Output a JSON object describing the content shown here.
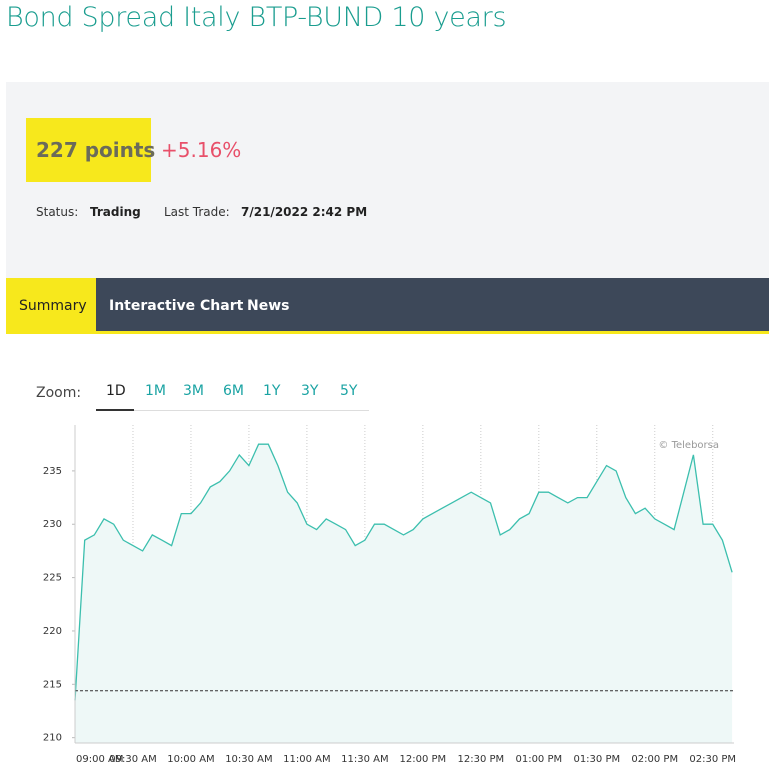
{
  "header": {
    "title": "Bond Spread Italy BTP-BUND 10 years"
  },
  "quote": {
    "price": "227 points",
    "change": "+5.16%",
    "status_label": "Status:",
    "status": "Trading",
    "last_trade_label": "Last Trade:",
    "last_trade": "7/21/2022 2:42 PM"
  },
  "tabs": [
    "Summary",
    "Interactive Chart",
    "News"
  ],
  "zoom": {
    "label": "Zoom:",
    "options": [
      "1D",
      "1M",
      "3M",
      "6M",
      "1Y",
      "3Y",
      "5Y"
    ]
  },
  "chart_data": {
    "type": "line",
    "credit": "© Teleborsa",
    "x": [
      "09:00 AM",
      "09:05 AM",
      "09:10 AM",
      "09:15 AM",
      "09:20 AM",
      "09:25 AM",
      "09:30 AM",
      "09:35 AM",
      "09:40 AM",
      "09:45 AM",
      "09:50 AM",
      "09:55 AM",
      "10:00 AM",
      "10:05 AM",
      "10:10 AM",
      "10:15 AM",
      "10:20 AM",
      "10:25 AM",
      "10:30 AM",
      "10:35 AM",
      "10:40 AM",
      "10:45 AM",
      "10:50 AM",
      "10:55 AM",
      "11:00 AM",
      "11:05 AM",
      "11:10 AM",
      "11:15 AM",
      "11:20 AM",
      "11:25 AM",
      "11:30 AM",
      "11:35 AM",
      "11:40 AM",
      "11:45 AM",
      "11:50 AM",
      "11:55 AM",
      "12:00 PM",
      "12:05 PM",
      "12:10 PM",
      "12:15 PM",
      "12:20 PM",
      "12:25 PM",
      "12:30 PM",
      "12:35 PM",
      "12:40 PM",
      "12:45 PM",
      "12:50 PM",
      "12:55 PM",
      "01:00 PM",
      "01:05 PM",
      "01:10 PM",
      "01:15 PM",
      "01:20 PM",
      "01:25 PM",
      "01:30 PM",
      "01:35 PM",
      "01:40 PM",
      "01:45 PM",
      "01:50 PM",
      "01:55 PM",
      "02:00 PM",
      "02:05 PM",
      "02:10 PM",
      "02:15 PM",
      "02:20 PM",
      "02:25 PM",
      "02:30 PM",
      "02:35 PM",
      "02:40 PM"
    ],
    "series": [
      {
        "color": "#3cbfae",
        "values": [
          213.5,
          228.5,
          229,
          230.5,
          230,
          228.5,
          228,
          227.5,
          229,
          228.5,
          228,
          231,
          231,
          232,
          233.5,
          234,
          235,
          236.5,
          235.5,
          237.5,
          237.5,
          235.5,
          233,
          232,
          230,
          229.5,
          230.5,
          230,
          229.5,
          228,
          228.5,
          230,
          230,
          229.5,
          229,
          229.5,
          230.5,
          231,
          231.5,
          232,
          232.5,
          233,
          232.5,
          232,
          229,
          229.5,
          230.5,
          231,
          233,
          233,
          232.5,
          232,
          232.5,
          232.5,
          234,
          235.5,
          235,
          232.5,
          231,
          231.5,
          230.5,
          230,
          229.5,
          233,
          236.5,
          230,
          230,
          228.5,
          225.5
        ]
      }
    ],
    "fill": "#eef8f7",
    "xlim": [
      "09:00 AM",
      "02:41 PM"
    ],
    "xticks": [
      "09:00 AM",
      "09:30 AM",
      "10:00 AM",
      "10:30 AM",
      "11:00 AM",
      "11:30 AM",
      "12:00 PM",
      "12:30 PM",
      "01:00 PM",
      "01:30 PM",
      "02:00 PM",
      "02:30 PM"
    ],
    "ylim": [
      209.5,
      239.3
    ],
    "yticks": [
      210,
      215,
      220,
      225,
      230,
      235
    ],
    "reference_line": 214.4,
    "grid": true
  }
}
